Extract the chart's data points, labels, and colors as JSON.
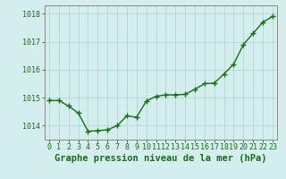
{
  "x": [
    0,
    1,
    2,
    3,
    4,
    5,
    6,
    7,
    8,
    9,
    10,
    11,
    12,
    13,
    14,
    15,
    16,
    17,
    18,
    19,
    20,
    21,
    22,
    23
  ],
  "y": [
    1014.9,
    1014.9,
    1014.7,
    1014.45,
    1013.8,
    1013.82,
    1013.85,
    1014.0,
    1014.35,
    1014.3,
    1014.88,
    1015.05,
    1015.1,
    1015.1,
    1015.12,
    1015.3,
    1015.5,
    1015.52,
    1015.85,
    1016.2,
    1016.9,
    1017.3,
    1017.7,
    1017.9
  ],
  "ylim": [
    1013.5,
    1018.3
  ],
  "yticks": [
    1014,
    1015,
    1016,
    1017,
    1018
  ],
  "xticks": [
    0,
    1,
    2,
    3,
    4,
    5,
    6,
    7,
    8,
    9,
    10,
    11,
    12,
    13,
    14,
    15,
    16,
    17,
    18,
    19,
    20,
    21,
    22,
    23
  ],
  "line_color": "#1a6b1a",
  "marker_color": "#1a6b1a",
  "bg_color": "#d4eeee",
  "grid_color": "#b0d8d8",
  "xlabel": "Graphe pression niveau de la mer (hPa)",
  "xlabel_color": "#1a6b1a",
  "tick_color": "#1a6b1a",
  "axis_color": "#888888",
  "xlabel_fontsize": 7.5,
  "tick_fontsize": 6.0,
  "ytick_fontsize": 6.0,
  "linewidth": 1.0,
  "markersize": 2.5
}
